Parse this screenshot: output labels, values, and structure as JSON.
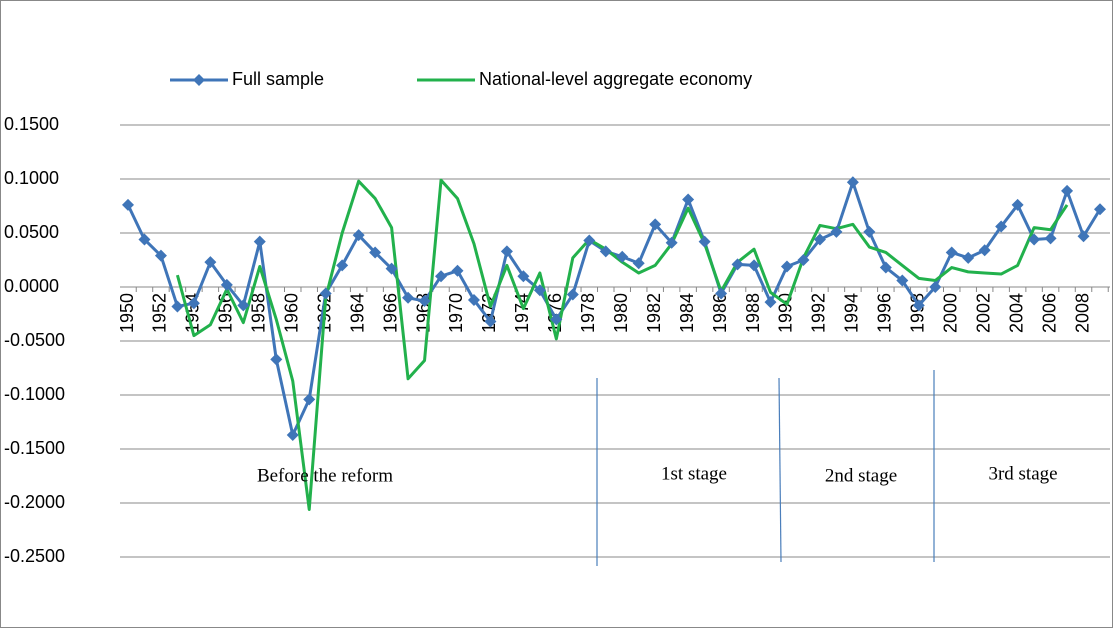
{
  "chart_data": {
    "type": "line",
    "categories": [
      "1950",
      null,
      "1952",
      null,
      "1954",
      null,
      "1956",
      null,
      "1958",
      null,
      "1960",
      null,
      "1962",
      null,
      "1964",
      null,
      "1966",
      null,
      "1968",
      null,
      "1970",
      null,
      "1972",
      null,
      "1974",
      null,
      "1976",
      null,
      "1978",
      null,
      "1980",
      null,
      "1982",
      null,
      "1984",
      null,
      "1986",
      null,
      "1988",
      null,
      "1990",
      null,
      "1992",
      null,
      "1994",
      null,
      "1996",
      null,
      "1998",
      null,
      "2000",
      null,
      "2002",
      null,
      "2004",
      null,
      "2006",
      null,
      "2008",
      null
    ],
    "series": [
      {
        "name": "Full sample",
        "color": "#3f75b8",
        "marker": "diamond",
        "values": [
          0.076,
          0.044,
          0.029,
          -0.018,
          -0.015,
          0.023,
          0.002,
          -0.017,
          0.042,
          -0.067,
          -0.137,
          -0.104,
          -0.006,
          0.02,
          0.048,
          0.032,
          0.017,
          -0.01,
          -0.013,
          0.01,
          0.015,
          -0.012,
          -0.032,
          0.033,
          0.01,
          -0.003,
          -0.03,
          -0.007,
          0.043,
          0.033,
          0.028,
          0.022,
          0.058,
          0.041,
          0.081,
          0.042,
          -0.006,
          0.021,
          0.02,
          -0.014,
          0.019,
          0.025,
          0.044,
          0.051,
          0.097,
          0.051,
          0.018,
          0.006,
          -0.017,
          0.0,
          0.032,
          0.027,
          0.034,
          0.056,
          0.076,
          0.044,
          0.045,
          0.089,
          0.047,
          0.072
        ]
      },
      {
        "name": "National-level aggregate economy",
        "color": "#22b14c",
        "marker": "none",
        "values": [
          null,
          null,
          null,
          0.011,
          -0.045,
          -0.035,
          -0.002,
          -0.033,
          0.019,
          -0.03,
          -0.087,
          -0.206,
          -0.01,
          0.05,
          0.098,
          0.082,
          0.055,
          -0.085,
          -0.068,
          0.099,
          0.082,
          0.04,
          -0.018,
          0.02,
          -0.02,
          0.013,
          -0.048,
          0.027,
          0.044,
          0.035,
          0.023,
          0.013,
          0.02,
          0.04,
          0.073,
          0.04,
          -0.004,
          0.023,
          0.035,
          -0.005,
          -0.016,
          0.027,
          0.057,
          0.054,
          0.058,
          0.037,
          0.032,
          0.02,
          0.008,
          0.006,
          0.018,
          0.014,
          0.013,
          0.012,
          0.02,
          0.055,
          0.053,
          0.076,
          null,
          null
        ]
      }
    ],
    "ylim": [
      -0.25,
      0.15
    ],
    "yticks": [
      {
        "value": 0.15,
        "label": "0.1500"
      },
      {
        "value": 0.1,
        "label": "0.1000"
      },
      {
        "value": 0.05,
        "label": "0.0500"
      },
      {
        "value": 0,
        "label": "0.0000"
      },
      {
        "value": -0.05,
        "label": "-0.0500"
      },
      {
        "value": -0.1,
        "label": "-0.1000"
      },
      {
        "value": -0.15,
        "label": "-0.1500"
      },
      {
        "value": -0.2,
        "label": "-0.2000"
      },
      {
        "value": -0.25,
        "label": "-0.2500"
      }
    ],
    "grid": true,
    "legend": "top",
    "annotations": [
      "Before the reform",
      "1st stage",
      "2nd stage",
      "3rd stage"
    ]
  }
}
